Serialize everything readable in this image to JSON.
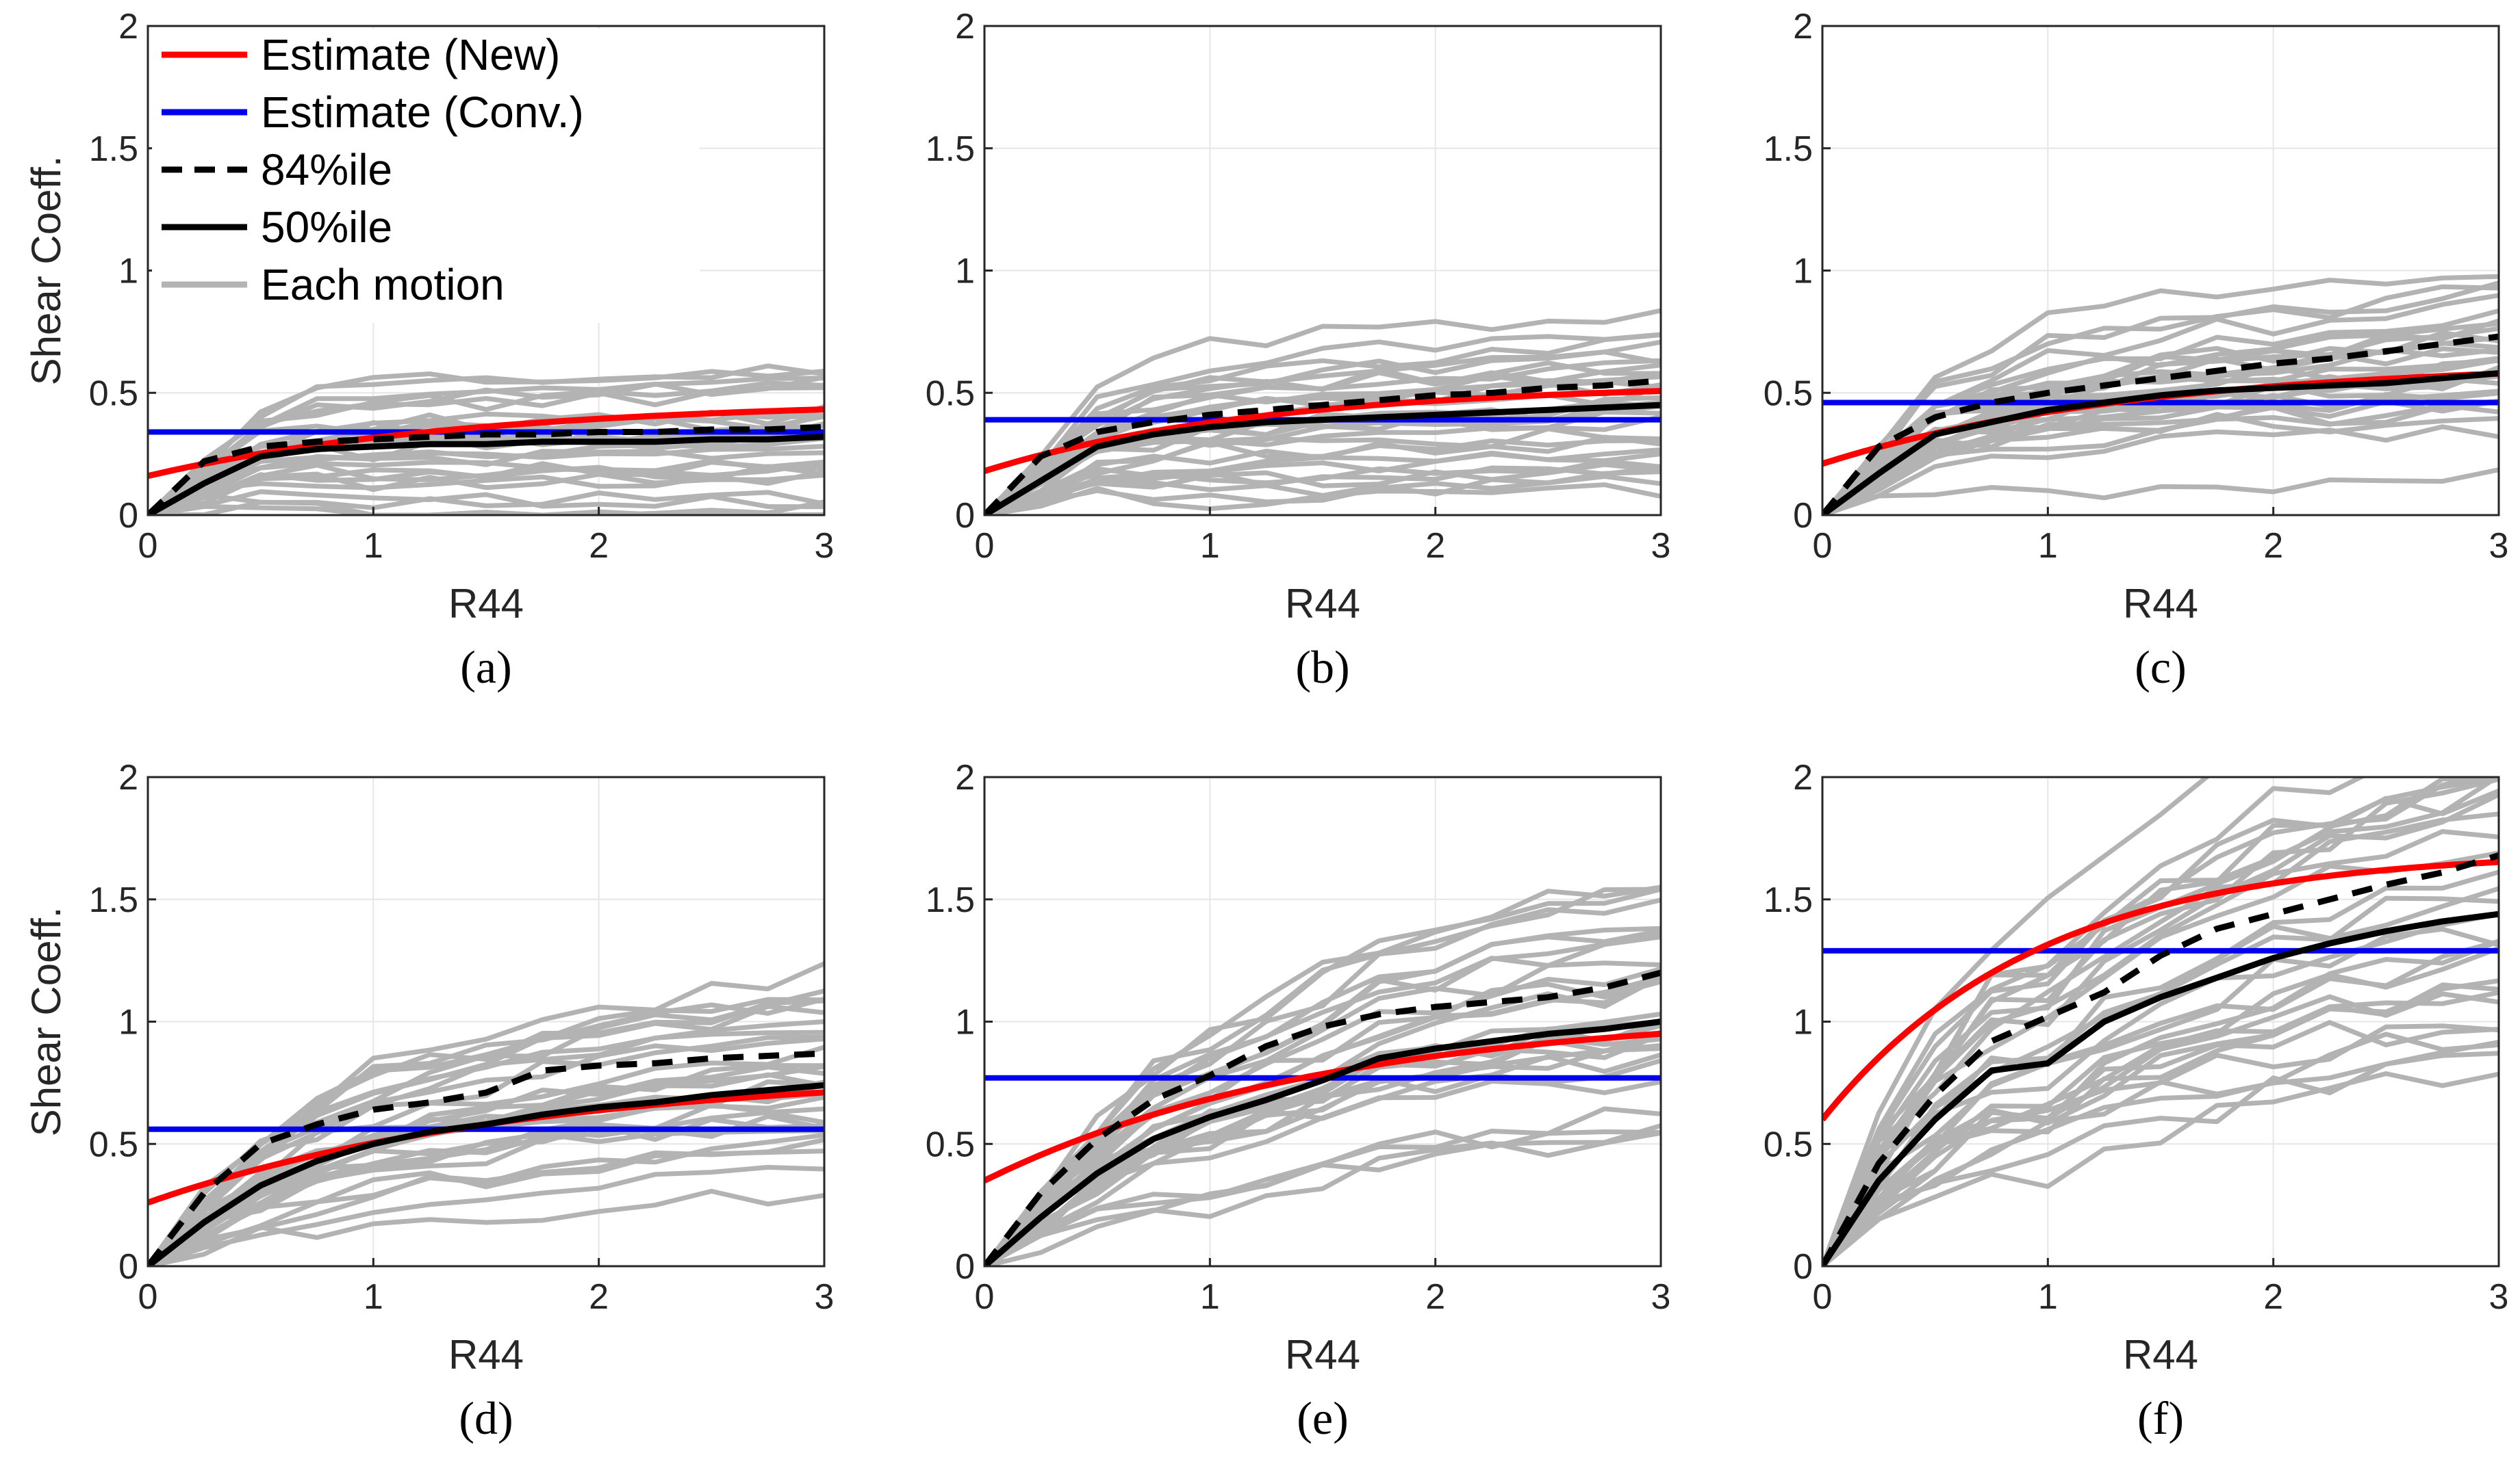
{
  "chart_data": {
    "type": "line",
    "layout": "2x3 grid of subplots",
    "colors": {
      "estimate_new": "#ff0000",
      "estimate_conv": "#0000ee",
      "percentile": "#000000",
      "motion": "#b3b3b3"
    },
    "legend": [
      {
        "label": "Estimate (New)",
        "style": "solid-red"
      },
      {
        "label": "Estimate (Conv.)",
        "style": "solid-blue"
      },
      {
        "label": "84%ile",
        "style": "dashed-black"
      },
      {
        "label": "50%ile",
        "style": "solid-black"
      },
      {
        "label": "Each motion",
        "style": "solid-gray"
      }
    ],
    "x_ticks": [
      "0",
      "1",
      "2",
      "3"
    ],
    "y_ticks": [
      "0",
      "0.5",
      "1",
      "1.5",
      "2"
    ],
    "xlim": [
      0,
      3
    ],
    "ylim": [
      0,
      2
    ],
    "grid": true,
    "x_grid": [
      0,
      0.25,
      0.5,
      0.75,
      1,
      1.25,
      1.5,
      1.75,
      2,
      2.25,
      2.5,
      2.75,
      3
    ],
    "panels": [
      {
        "panel_label": "(a)",
        "xlabel": "R44",
        "ylabel": "Shear Coeff.",
        "conv": 0.34,
        "new_curve": {
          "a0": 0.16,
          "a": 0.31,
          "k": 0.7
        },
        "p50": [
          0,
          0.13,
          0.24,
          0.27,
          0.28,
          0.29,
          0.29,
          0.3,
          0.3,
          0.3,
          0.31,
          0.31,
          0.32
        ],
        "p84": [
          0,
          0.22,
          0.28,
          0.3,
          0.31,
          0.32,
          0.33,
          0.33,
          0.34,
          0.34,
          0.35,
          0.35,
          0.36
        ],
        "motion_spread": 0.18,
        "motion_count": 30,
        "seed": 11
      },
      {
        "panel_label": "(b)",
        "xlabel": "R44",
        "ylabel": "",
        "conv": 0.39,
        "new_curve": {
          "a0": 0.18,
          "a": 0.36,
          "k": 0.8
        },
        "p50": [
          0,
          0.14,
          0.28,
          0.33,
          0.36,
          0.38,
          0.39,
          0.4,
          0.41,
          0.42,
          0.43,
          0.44,
          0.45
        ],
        "p84": [
          0,
          0.24,
          0.34,
          0.38,
          0.41,
          0.43,
          0.45,
          0.47,
          0.49,
          0.5,
          0.52,
          0.53,
          0.55
        ],
        "motion_spread": 0.22,
        "motion_count": 30,
        "seed": 23
      },
      {
        "panel_label": "(c)",
        "xlabel": "R44",
        "ylabel": "",
        "conv": 0.46,
        "new_curve": {
          "a0": 0.21,
          "a": 0.42,
          "k": 0.7
        },
        "p50": [
          0,
          0.17,
          0.33,
          0.38,
          0.43,
          0.46,
          0.49,
          0.51,
          0.52,
          0.53,
          0.54,
          0.56,
          0.58
        ],
        "p84": [
          0,
          0.28,
          0.4,
          0.46,
          0.5,
          0.53,
          0.56,
          0.59,
          0.62,
          0.64,
          0.67,
          0.7,
          0.73
        ],
        "motion_spread": 0.3,
        "motion_count": 30,
        "seed": 37
      },
      {
        "panel_label": "(d)",
        "xlabel": "R44",
        "ylabel": "Shear Coeff.",
        "conv": 0.56,
        "new_curve": {
          "a0": 0.26,
          "a": 0.54,
          "k": 0.6
        },
        "p50": [
          0,
          0.18,
          0.33,
          0.43,
          0.5,
          0.55,
          0.58,
          0.62,
          0.65,
          0.67,
          0.7,
          0.72,
          0.74
        ],
        "p84": [
          0,
          0.3,
          0.5,
          0.58,
          0.64,
          0.67,
          0.71,
          0.8,
          0.82,
          0.83,
          0.85,
          0.86,
          0.87
        ],
        "motion_spread": 0.36,
        "motion_count": 30,
        "seed": 41
      },
      {
        "panel_label": "(e)",
        "xlabel": "R44",
        "ylabel": "",
        "conv": 0.77,
        "new_curve": {
          "a0": 0.35,
          "a": 0.7,
          "k": 0.65
        },
        "p50": [
          0,
          0.2,
          0.38,
          0.52,
          0.61,
          0.68,
          0.76,
          0.85,
          0.89,
          0.92,
          0.95,
          0.97,
          1.0
        ],
        "p84": [
          0,
          0.3,
          0.52,
          0.68,
          0.78,
          0.9,
          0.98,
          1.03,
          1.06,
          1.08,
          1.1,
          1.14,
          1.2
        ],
        "motion_spread": 0.5,
        "motion_count": 30,
        "seed": 53
      },
      {
        "panel_label": "(f)",
        "xlabel": "R44",
        "ylabel": "",
        "conv": 1.29,
        "new_curve": {
          "a0": 0.6,
          "a": 1.1,
          "k": 1.05
        },
        "p50": [
          0,
          0.35,
          0.6,
          0.8,
          0.83,
          1.0,
          1.1,
          1.18,
          1.26,
          1.32,
          1.37,
          1.41,
          1.44
        ],
        "p84": [
          0,
          0.42,
          0.7,
          0.92,
          1.02,
          1.12,
          1.27,
          1.38,
          1.44,
          1.5,
          1.56,
          1.61,
          1.68
        ],
        "motion_spread": 0.9,
        "motion_count": 30,
        "seed": 67
      }
    ]
  }
}
